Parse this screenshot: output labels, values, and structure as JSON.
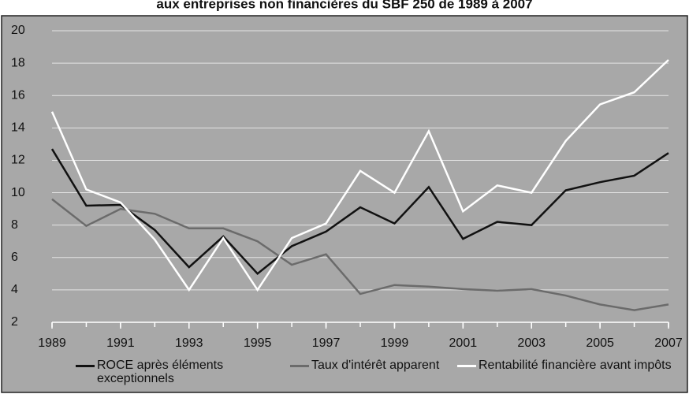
{
  "chart_data": {
    "type": "line",
    "title": "aux entreprises non financières du SBF 250 de 1989 à 2007",
    "x": [
      1989,
      1990,
      1991,
      1992,
      1993,
      1994,
      1995,
      1996,
      1997,
      1998,
      1999,
      2000,
      2001,
      2002,
      2003,
      2004,
      2005,
      2006,
      2007
    ],
    "xlim": [
      1989,
      2007
    ],
    "xticks": [
      1989,
      1991,
      1993,
      1995,
      1997,
      1999,
      2001,
      2003,
      2005,
      2007
    ],
    "ylim": [
      2,
      20
    ],
    "yticks": [
      2,
      4,
      6,
      8,
      10,
      12,
      14,
      16,
      18,
      20
    ],
    "grid": true,
    "legend": "bottom",
    "series": [
      {
        "name": "ROCE après éléments exceptionnels",
        "color": "#111111",
        "values": [
          12.7,
          9.2,
          9.25,
          7.7,
          5.4,
          7.3,
          5.0,
          6.7,
          7.6,
          9.1,
          8.1,
          10.35,
          7.15,
          8.2,
          8.0,
          10.15,
          10.65,
          11.05,
          12.45
        ]
      },
      {
        "name": "Taux d'intérêt apparent",
        "color": "#6b6b6b",
        "values": [
          9.6,
          7.95,
          9.0,
          8.7,
          7.8,
          7.8,
          7.0,
          5.55,
          6.2,
          3.75,
          4.3,
          4.2,
          4.05,
          3.95,
          4.05,
          3.65,
          3.1,
          2.75,
          3.1
        ]
      },
      {
        "name": "Rentabilité financière avant impôts",
        "color": "#ffffff",
        "values": [
          15.0,
          10.2,
          9.4,
          7.1,
          4.0,
          7.2,
          4.0,
          7.2,
          8.1,
          11.35,
          10.0,
          13.8,
          8.85,
          10.45,
          10.0,
          13.2,
          15.45,
          16.2,
          18.2
        ]
      }
    ]
  }
}
